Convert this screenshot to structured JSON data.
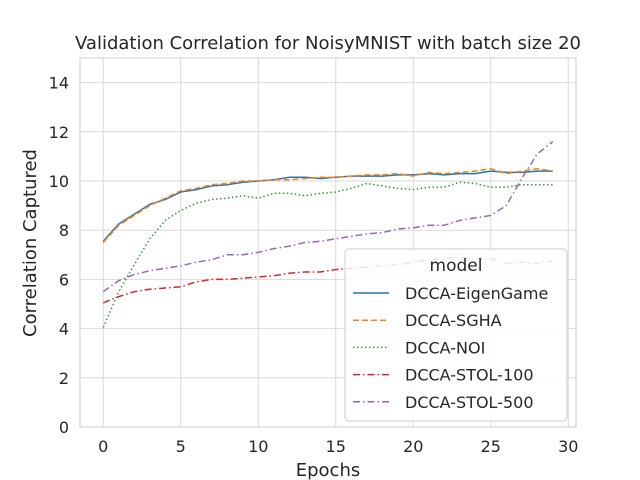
{
  "chart_data": {
    "type": "line",
    "title": "Validation Correlation for NoisyMNIST with batch size 20",
    "xlabel": "Epochs",
    "ylabel": "Correlation Captured",
    "xlim": [
      -1.5,
      30.5
    ],
    "ylim": [
      0,
      15
    ],
    "xticks": [
      0,
      5,
      10,
      15,
      20,
      25,
      30
    ],
    "yticks": [
      0,
      2,
      4,
      6,
      8,
      10,
      12,
      14
    ],
    "grid": true,
    "legend": {
      "title": "model",
      "position": "lower-right"
    },
    "x": [
      0,
      1,
      2,
      3,
      4,
      5,
      6,
      7,
      8,
      9,
      10,
      11,
      12,
      13,
      14,
      15,
      16,
      17,
      18,
      19,
      20,
      21,
      22,
      23,
      24,
      25,
      26,
      27,
      28,
      29
    ],
    "series": [
      {
        "name": "DCCA-EigenGame",
        "color": "#1f77b4",
        "dash": "solid",
        "values": [
          7.55,
          8.25,
          8.65,
          9.05,
          9.25,
          9.55,
          9.65,
          9.8,
          9.85,
          9.95,
          10.0,
          10.05,
          10.15,
          10.15,
          10.1,
          10.15,
          10.2,
          10.2,
          10.2,
          10.25,
          10.25,
          10.3,
          10.25,
          10.3,
          10.3,
          10.4,
          10.35,
          10.35,
          10.4,
          10.4
        ]
      },
      {
        "name": "DCCA-SGHA",
        "color": "#ff7f0e",
        "dash": "dashed",
        "values": [
          7.5,
          8.2,
          8.6,
          9.0,
          9.3,
          9.6,
          9.7,
          9.85,
          9.9,
          10.0,
          10.0,
          10.05,
          10.05,
          10.1,
          10.15,
          10.15,
          10.2,
          10.25,
          10.25,
          10.3,
          10.2,
          10.35,
          10.3,
          10.35,
          10.4,
          10.5,
          10.3,
          10.4,
          10.5,
          10.4
        ]
      },
      {
        "name": "DCCA-NOI",
        "color": "#2ca02c",
        "dash": "dotted",
        "values": [
          4.05,
          5.5,
          6.6,
          7.65,
          8.4,
          8.8,
          9.1,
          9.25,
          9.3,
          9.4,
          9.3,
          9.5,
          9.5,
          9.4,
          9.5,
          9.55,
          9.7,
          9.9,
          9.8,
          9.7,
          9.65,
          9.75,
          9.75,
          9.95,
          9.9,
          9.75,
          9.75,
          9.85,
          9.85,
          9.85
        ]
      },
      {
        "name": "DCCA-STOL-100",
        "color": "#d62728",
        "dash": "dashdot",
        "values": [
          5.05,
          5.3,
          5.5,
          5.6,
          5.65,
          5.7,
          5.9,
          6.0,
          6.0,
          6.05,
          6.1,
          6.15,
          6.25,
          6.3,
          6.3,
          6.4,
          6.45,
          6.5,
          6.55,
          6.6,
          6.7,
          6.8,
          6.85,
          6.9,
          6.85,
          6.85,
          6.65,
          6.7,
          6.65,
          6.75
        ]
      },
      {
        "name": "DCCA-STOL-500",
        "color": "#9467bd",
        "dash": "dashdot",
        "values": [
          5.5,
          5.95,
          6.2,
          6.35,
          6.45,
          6.55,
          6.7,
          6.8,
          7.0,
          7.0,
          7.1,
          7.25,
          7.35,
          7.5,
          7.55,
          7.65,
          7.75,
          7.85,
          7.9,
          8.05,
          8.1,
          8.2,
          8.2,
          8.4,
          8.5,
          8.6,
          9.0,
          10.1,
          11.1,
          11.6
        ]
      }
    ]
  }
}
